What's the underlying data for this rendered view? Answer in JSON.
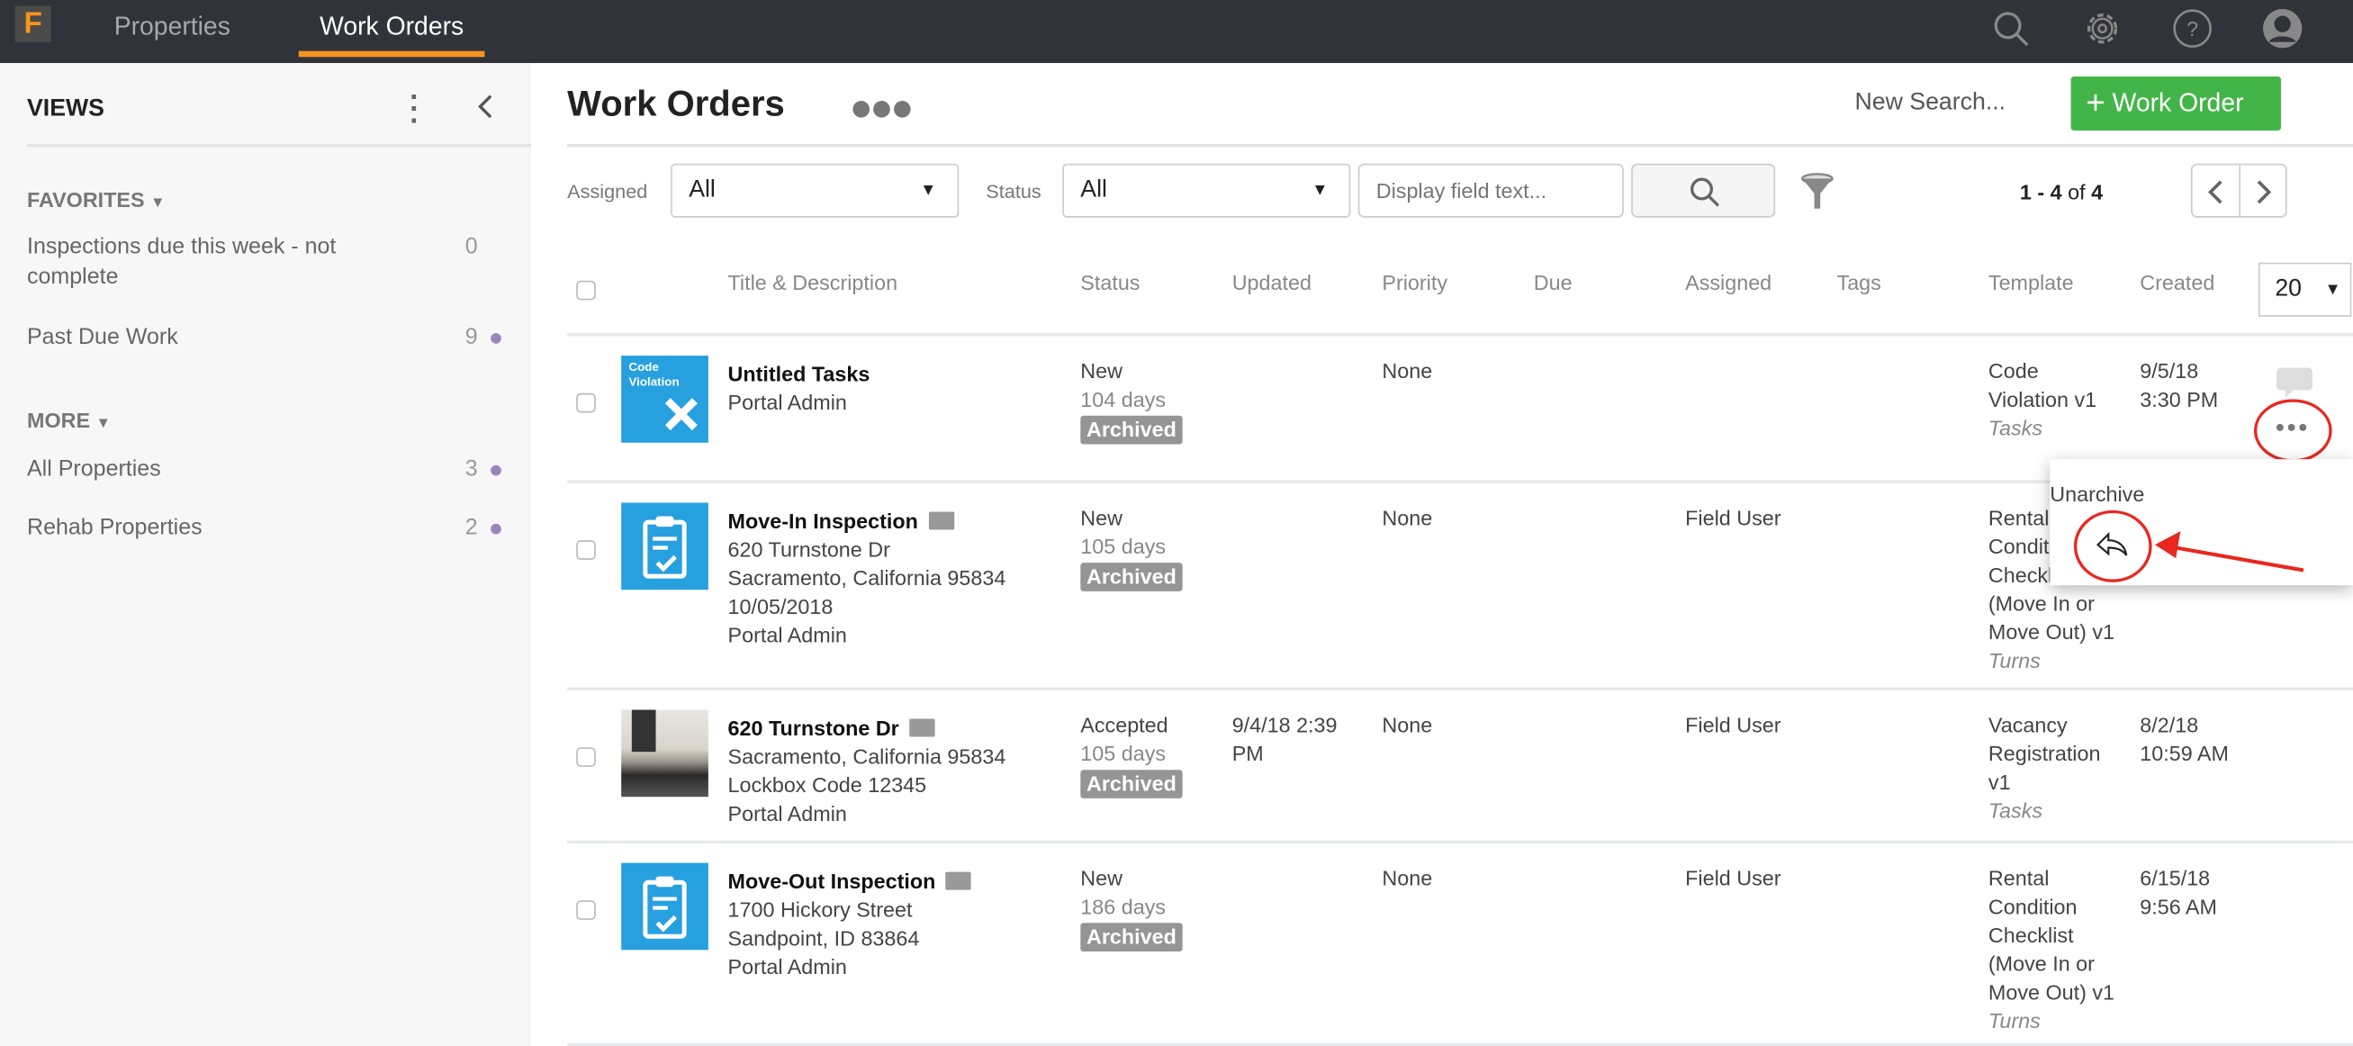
{
  "topbar": {
    "logo": "F",
    "nav": [
      {
        "label": "Properties",
        "active": false
      },
      {
        "label": "Work Orders",
        "active": true
      }
    ],
    "icons": [
      "search-icon",
      "gear-icon",
      "help-icon",
      "user-avatar-icon"
    ]
  },
  "sidebar": {
    "title": "VIEWS",
    "favorites_label": "FAVORITES",
    "more_label": "MORE",
    "favorites": [
      {
        "label": "Inspections due this week - not complete",
        "count": "0",
        "dot": false
      },
      {
        "label": "Past Due Work",
        "count": "9",
        "dot": true
      }
    ],
    "more": [
      {
        "label": "All Properties",
        "count": "3",
        "dot": true
      },
      {
        "label": "Rehab Properties",
        "count": "2",
        "dot": true
      }
    ]
  },
  "main": {
    "title": "Work Orders",
    "new_search": "New Search...",
    "add_button": "Work Order",
    "accent": "#43b548",
    "filters": {
      "assigned_label": "Assigned",
      "assigned_value": "All",
      "status_label": "Status",
      "status_value": "All",
      "search_placeholder": "Display field text..."
    },
    "pagination": {
      "range": "1 - 4",
      "of": "of",
      "total": "4"
    },
    "page_size": "20",
    "columns": [
      "Title & Description",
      "Status",
      "Updated",
      "Priority",
      "Due",
      "Assigned",
      "Tags",
      "Template",
      "Created"
    ],
    "rows": [
      {
        "thumb": "code-violation",
        "thumb_text": [
          "Code",
          "Violation"
        ],
        "title": "Untitled Tasks",
        "folder": false,
        "desc": [
          "Portal Admin"
        ],
        "status": "New",
        "days": "104 days",
        "badge": "Archived",
        "updated": "",
        "priority": "None",
        "assigned": "",
        "template": [
          "Code",
          "Violation v1"
        ],
        "template_cat": "Tasks",
        "created": [
          "9/5/18",
          "3:30 PM"
        ]
      },
      {
        "thumb": "clipboard",
        "title": "Move-In Inspection",
        "folder": true,
        "desc": [
          "620 Turnstone Dr",
          "Sacramento, California 95834",
          "10/05/2018",
          "Portal Admin"
        ],
        "status": "New",
        "days": "105 days",
        "badge": "Archived",
        "updated": "",
        "priority": "None",
        "assigned": "Field User",
        "template": [
          "Rental",
          "Condition",
          "Checklist",
          "(Move In or",
          "Move Out) v1"
        ],
        "template_cat": "Turns",
        "created": []
      },
      {
        "thumb": "photo",
        "title": "620 Turnstone Dr",
        "folder": true,
        "desc": [
          "Sacramento, California 95834",
          "Lockbox Code 12345",
          "Portal Admin"
        ],
        "status": "Accepted",
        "days": "105 days",
        "badge": "Archived",
        "updated": "9/4/18 2:39 PM",
        "priority": "None",
        "assigned": "Field User",
        "template": [
          "Vacancy",
          "Registration",
          "v1"
        ],
        "template_cat": "Tasks",
        "created": [
          "8/2/18",
          "10:59 AM"
        ]
      },
      {
        "thumb": "clipboard",
        "title": "Move-Out Inspection",
        "folder": true,
        "desc": [
          "1700 Hickory Street",
          "Sandpoint, ID 83864",
          "Portal Admin"
        ],
        "status": "New",
        "days": "186 days",
        "badge": "Archived",
        "updated": "",
        "priority": "None",
        "assigned": "Field User",
        "template": [
          "Rental",
          "Condition",
          "Checklist",
          "(Move In or",
          "Move Out) v1"
        ],
        "template_cat": "Turns",
        "created": [
          "6/15/18",
          "9:56 AM"
        ]
      }
    ]
  },
  "popup": {
    "label": "Unarchive",
    "icon": "reply-icon",
    "annotation_color": "#e8281e"
  }
}
